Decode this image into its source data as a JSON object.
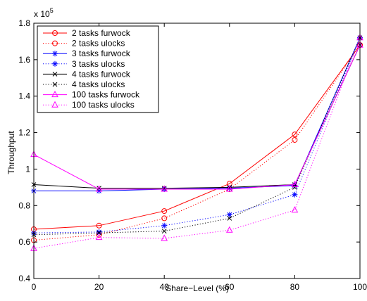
{
  "chart_data": {
    "type": "line",
    "title": "",
    "xlabel": "Share−Level (%)",
    "ylabel": "Throughput",
    "y_multiplier": "x 10",
    "y_multiplier_exp": "5",
    "x_ticks": [
      "0",
      "20",
      "40",
      "60",
      "80",
      "100"
    ],
    "y_ticks": [
      "0.4",
      "0.6",
      "0.8",
      "1",
      "1.2",
      "1.4",
      "1.6",
      "1.8"
    ],
    "xlim": [
      0,
      100
    ],
    "ylim": [
      0.4,
      1.8
    ],
    "grid": false,
    "legend_position": "top-left",
    "x": [
      0,
      20,
      40,
      60,
      80,
      100
    ],
    "series": [
      {
        "name": "2 tasks furwock",
        "color": "#ff0000",
        "dash": "solid",
        "marker": "circle",
        "values": [
          0.67,
          0.69,
          0.77,
          0.92,
          1.19,
          1.68
        ]
      },
      {
        "name": "2 tasks ulocks",
        "color": "#ff0000",
        "dash": "dotted",
        "marker": "circle",
        "values": [
          0.61,
          0.64,
          0.73,
          0.89,
          1.16,
          1.68
        ]
      },
      {
        "name": "3 tasks furwock",
        "color": "#0000ff",
        "dash": "solid",
        "marker": "star",
        "values": [
          0.88,
          0.88,
          0.89,
          0.895,
          0.91,
          1.72
        ]
      },
      {
        "name": "3 tasks ulocks",
        "color": "#0000ff",
        "dash": "dotted",
        "marker": "star",
        "values": [
          0.65,
          0.655,
          0.69,
          0.75,
          0.86,
          1.72
        ]
      },
      {
        "name": "4 tasks furwock",
        "color": "#000000",
        "dash": "solid",
        "marker": "x",
        "values": [
          0.915,
          0.895,
          0.895,
          0.9,
          0.915,
          1.68
        ]
      },
      {
        "name": "4 tasks ulocks",
        "color": "#000000",
        "dash": "dotted",
        "marker": "x",
        "values": [
          0.64,
          0.65,
          0.66,
          0.73,
          0.9,
          1.72
        ]
      },
      {
        "name": "100 tasks furwock",
        "color": "#ff00ff",
        "dash": "solid",
        "marker": "triangle",
        "values": [
          1.08,
          0.89,
          0.89,
          0.89,
          0.915,
          1.68
        ]
      },
      {
        "name": "100 tasks ulocks",
        "color": "#ff00ff",
        "dash": "dotted",
        "marker": "triangle",
        "values": [
          0.565,
          0.625,
          0.62,
          0.665,
          0.775,
          1.72
        ]
      }
    ]
  }
}
